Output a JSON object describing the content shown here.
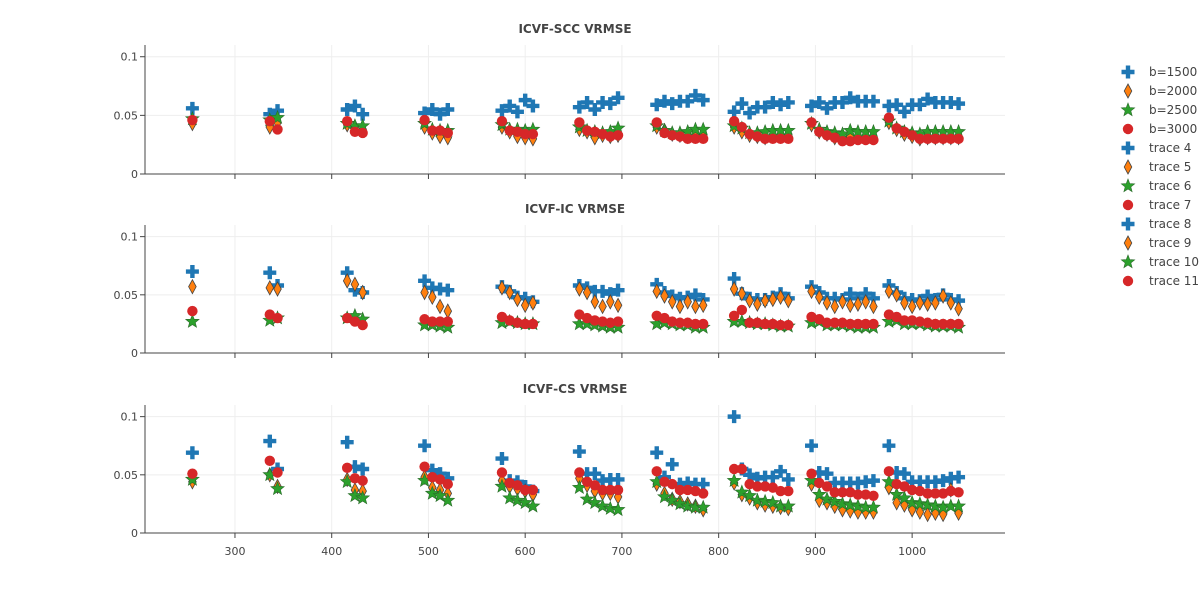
{
  "chart_data": {
    "type": "scatter",
    "x_axis": {
      "range": [
        207,
        1096
      ],
      "ticks": [
        300,
        400,
        500,
        600,
        700,
        800,
        900,
        1000
      ],
      "tick_labels": [
        "300",
        "400",
        "500",
        "600",
        "700",
        "800",
        "900",
        "1000"
      ],
      "grid": true
    },
    "y_axis": {
      "range": [
        0,
        0.11
      ],
      "ticks": [
        0,
        0.05,
        0.1
      ],
      "tick_labels": [
        "0",
        "0.05",
        "0.1"
      ],
      "grid": true
    },
    "x": [
      256,
      336,
      344,
      416,
      424,
      432,
      496,
      504,
      512,
      520,
      576,
      584,
      592,
      600,
      608,
      656,
      664,
      672,
      680,
      688,
      696,
      736,
      744,
      752,
      760,
      768,
      776,
      784,
      816,
      824,
      832,
      840,
      848,
      856,
      864,
      872,
      896,
      904,
      912,
      920,
      928,
      936,
      944,
      952,
      960,
      976,
      984,
      992,
      1000,
      1008,
      1016,
      1024,
      1032,
      1040,
      1048
    ],
    "legend": {
      "placement": "right",
      "entries": [
        "b=1500",
        "b=2000",
        "b=2500",
        "b=3000",
        "trace 4",
        "trace 5",
        "trace 6",
        "trace 7",
        "trace 8",
        "trace 9",
        "trace 10",
        "trace 11"
      ]
    },
    "series_styles": [
      {
        "marker": "cross",
        "color": "#1f77b4"
      },
      {
        "marker": "diamond",
        "color": "#ff7f0e"
      },
      {
        "marker": "star",
        "color": "#2ca02c"
      },
      {
        "marker": "circle",
        "color": "#d62728"
      }
    ],
    "subplots": [
      {
        "title": "ICVF-SCC VRMSE",
        "series": [
          {
            "name": "b=1500",
            "values": [
              0.056,
              0.051,
              0.054,
              0.055,
              0.058,
              0.051,
              0.052,
              0.055,
              0.051,
              0.055,
              0.054,
              0.058,
              0.053,
              0.063,
              0.058,
              0.057,
              0.061,
              0.055,
              0.061,
              0.06,
              0.065,
              0.059,
              0.062,
              0.06,
              0.062,
              0.062,
              0.067,
              0.063,
              0.053,
              0.06,
              0.052,
              0.057,
              0.057,
              0.061,
              0.059,
              0.061,
              0.058,
              0.061,
              0.056,
              0.061,
              0.061,
              0.065,
              0.062,
              0.062,
              0.062,
              0.058,
              0.059,
              0.053,
              0.059,
              0.059,
              0.064,
              0.061,
              0.061,
              0.061,
              0.06
            ]
          },
          {
            "name": "b=2000",
            "values": [
              0.043,
              0.04,
              0.044,
              0.042,
              0.04,
              0.038,
              0.04,
              0.035,
              0.032,
              0.031,
              0.04,
              0.036,
              0.032,
              0.031,
              0.03,
              0.038,
              0.036,
              0.031,
              0.033,
              0.032,
              0.033,
              0.04,
              0.037,
              0.034,
              0.033,
              0.032,
              0.033,
              0.034,
              0.04,
              0.036,
              0.033,
              0.032,
              0.031,
              0.033,
              0.033,
              0.034,
              0.042,
              0.036,
              0.034,
              0.031,
              0.031,
              0.032,
              0.032,
              0.032,
              0.032,
              0.044,
              0.038,
              0.034,
              0.032,
              0.03,
              0.031,
              0.031,
              0.031,
              0.031,
              0.031
            ]
          },
          {
            "name": "b=2500",
            "values": [
              0.047,
              0.046,
              0.048,
              0.043,
              0.041,
              0.041,
              0.043,
              0.038,
              0.037,
              0.037,
              0.042,
              0.038,
              0.038,
              0.037,
              0.038,
              0.04,
              0.037,
              0.036,
              0.035,
              0.036,
              0.039,
              0.041,
              0.037,
              0.035,
              0.035,
              0.036,
              0.038,
              0.038,
              0.041,
              0.039,
              0.035,
              0.035,
              0.036,
              0.037,
              0.037,
              0.037,
              0.043,
              0.038,
              0.036,
              0.035,
              0.034,
              0.037,
              0.036,
              0.036,
              0.036,
              0.045,
              0.039,
              0.036,
              0.035,
              0.034,
              0.036,
              0.036,
              0.036,
              0.036,
              0.036
            ]
          },
          {
            "name": "b=3000",
            "values": [
              0.046,
              0.045,
              0.038,
              0.045,
              0.036,
              0.035,
              0.046,
              0.037,
              0.037,
              0.035,
              0.045,
              0.037,
              0.036,
              0.034,
              0.034,
              0.044,
              0.037,
              0.036,
              0.034,
              0.032,
              0.033,
              0.044,
              0.035,
              0.033,
              0.032,
              0.03,
              0.03,
              0.03,
              0.045,
              0.04,
              0.034,
              0.032,
              0.03,
              0.03,
              0.03,
              0.03,
              0.044,
              0.036,
              0.033,
              0.031,
              0.028,
              0.028,
              0.029,
              0.029,
              0.029,
              0.048,
              0.039,
              0.036,
              0.033,
              0.03,
              0.03,
              0.03,
              0.03,
              0.03,
              0.03
            ]
          }
        ]
      },
      {
        "title": "ICVF-IC VRMSE",
        "series": [
          {
            "name": "trace 4",
            "values": [
              0.07,
              0.069,
              0.058,
              0.069,
              0.054,
              0.052,
              0.062,
              0.056,
              0.055,
              0.054,
              0.057,
              0.053,
              0.048,
              0.047,
              0.044,
              0.058,
              0.056,
              0.053,
              0.053,
              0.051,
              0.054,
              0.059,
              0.052,
              0.049,
              0.047,
              0.048,
              0.05,
              0.046,
              0.064,
              0.051,
              0.047,
              0.046,
              0.046,
              0.048,
              0.051,
              0.047,
              0.057,
              0.052,
              0.047,
              0.047,
              0.046,
              0.051,
              0.047,
              0.051,
              0.047,
              0.058,
              0.052,
              0.047,
              0.046,
              0.045,
              0.049,
              0.046,
              0.05,
              0.046,
              0.045
            ]
          },
          {
            "name": "trace 5",
            "values": [
              0.057,
              0.056,
              0.055,
              0.062,
              0.059,
              0.052,
              0.052,
              0.048,
              0.04,
              0.036,
              0.056,
              0.052,
              0.046,
              0.041,
              0.043,
              0.055,
              0.052,
              0.044,
              0.04,
              0.044,
              0.041,
              0.053,
              0.049,
              0.044,
              0.04,
              0.044,
              0.04,
              0.041,
              0.055,
              0.051,
              0.045,
              0.042,
              0.045,
              0.046,
              0.048,
              0.045,
              0.053,
              0.048,
              0.043,
              0.04,
              0.044,
              0.041,
              0.042,
              0.044,
              0.04,
              0.053,
              0.05,
              0.043,
              0.04,
              0.043,
              0.042,
              0.043,
              0.049,
              0.043,
              0.038
            ]
          },
          {
            "name": "trace 6",
            "values": [
              0.027,
              0.028,
              0.03,
              0.03,
              0.032,
              0.029,
              0.024,
              0.024,
              0.023,
              0.022,
              0.026,
              0.027,
              0.026,
              0.025,
              0.025,
              0.025,
              0.025,
              0.024,
              0.023,
              0.022,
              0.022,
              0.025,
              0.026,
              0.025,
              0.024,
              0.024,
              0.022,
              0.022,
              0.027,
              0.027,
              0.026,
              0.025,
              0.025,
              0.024,
              0.023,
              0.023,
              0.026,
              0.027,
              0.024,
              0.024,
              0.024,
              0.023,
              0.022,
              0.022,
              0.022,
              0.027,
              0.028,
              0.025,
              0.025,
              0.025,
              0.024,
              0.023,
              0.023,
              0.023,
              0.022
            ]
          },
          {
            "name": "trace 7",
            "values": [
              0.036,
              0.033,
              0.03,
              0.03,
              0.027,
              0.024,
              0.029,
              0.027,
              0.027,
              0.027,
              0.031,
              0.028,
              0.026,
              0.025,
              0.025,
              0.033,
              0.03,
              0.028,
              0.027,
              0.026,
              0.027,
              0.032,
              0.03,
              0.027,
              0.026,
              0.026,
              0.025,
              0.025,
              0.032,
              0.037,
              0.026,
              0.026,
              0.025,
              0.025,
              0.024,
              0.024,
              0.031,
              0.029,
              0.026,
              0.026,
              0.026,
              0.025,
              0.025,
              0.025,
              0.025,
              0.033,
              0.031,
              0.028,
              0.028,
              0.027,
              0.026,
              0.025,
              0.025,
              0.025,
              0.025
            ]
          }
        ]
      },
      {
        "title": "ICVF-CS VRMSE",
        "series": [
          {
            "name": "trace 8",
            "values": [
              0.069,
              0.079,
              0.055,
              0.078,
              0.057,
              0.055,
              0.075,
              0.054,
              0.051,
              0.047,
              0.064,
              0.045,
              0.044,
              0.04,
              0.036,
              0.07,
              0.051,
              0.051,
              0.045,
              0.046,
              0.046,
              0.069,
              0.048,
              0.059,
              0.042,
              0.043,
              0.042,
              0.042,
              0.1,
              0.055,
              0.05,
              0.047,
              0.048,
              0.048,
              0.053,
              0.046,
              0.075,
              0.052,
              0.051,
              0.043,
              0.043,
              0.043,
              0.043,
              0.044,
              0.045,
              0.075,
              0.052,
              0.051,
              0.044,
              0.044,
              0.044,
              0.044,
              0.045,
              0.047,
              0.048
            ]
          },
          {
            "name": "trace 9",
            "values": [
              0.044,
              0.05,
              0.04,
              0.046,
              0.037,
              0.036,
              0.048,
              0.039,
              0.037,
              0.034,
              0.045,
              0.04,
              0.038,
              0.036,
              0.033,
              0.047,
              0.041,
              0.036,
              0.034,
              0.034,
              0.031,
              0.042,
              0.034,
              0.029,
              0.027,
              0.025,
              0.023,
              0.02,
              0.043,
              0.033,
              0.03,
              0.026,
              0.024,
              0.023,
              0.022,
              0.021,
              0.042,
              0.028,
              0.026,
              0.023,
              0.02,
              0.019,
              0.018,
              0.018,
              0.018,
              0.039,
              0.026,
              0.024,
              0.02,
              0.018,
              0.016,
              0.017,
              0.016,
              0.037,
              0.017
            ]
          },
          {
            "name": "trace 10",
            "values": [
              0.046,
              0.05,
              0.038,
              0.044,
              0.032,
              0.03,
              0.045,
              0.034,
              0.032,
              0.028,
              0.04,
              0.03,
              0.028,
              0.026,
              0.023,
              0.039,
              0.029,
              0.026,
              0.023,
              0.021,
              0.02,
              0.044,
              0.031,
              0.028,
              0.025,
              0.023,
              0.022,
              0.022,
              0.045,
              0.035,
              0.032,
              0.028,
              0.027,
              0.026,
              0.023,
              0.023,
              0.045,
              0.033,
              0.029,
              0.027,
              0.025,
              0.024,
              0.023,
              0.022,
              0.022,
              0.044,
              0.033,
              0.03,
              0.026,
              0.025,
              0.024,
              0.023,
              0.022,
              0.023,
              0.023
            ]
          },
          {
            "name": "trace 11",
            "values": [
              0.051,
              0.062,
              0.052,
              0.056,
              0.047,
              0.045,
              0.057,
              0.048,
              0.046,
              0.042,
              0.052,
              0.043,
              0.041,
              0.037,
              0.037,
              0.052,
              0.044,
              0.041,
              0.037,
              0.037,
              0.037,
              0.053,
              0.044,
              0.042,
              0.037,
              0.037,
              0.036,
              0.034,
              0.055,
              0.055,
              0.042,
              0.04,
              0.04,
              0.039,
              0.036,
              0.036,
              0.051,
              0.043,
              0.04,
              0.035,
              0.035,
              0.035,
              0.033,
              0.033,
              0.032,
              0.053,
              0.042,
              0.04,
              0.037,
              0.036,
              0.034,
              0.034,
              0.034,
              0.036,
              0.035
            ]
          }
        ]
      }
    ]
  }
}
